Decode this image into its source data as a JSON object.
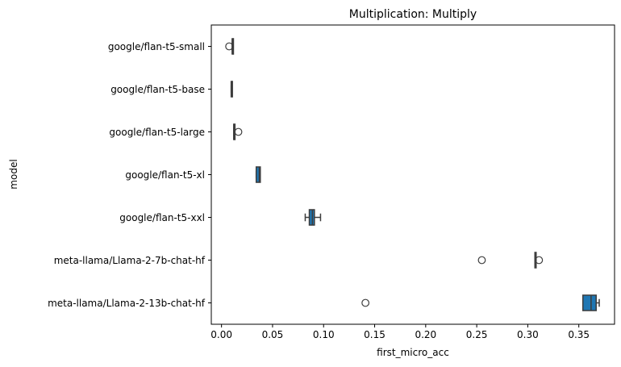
{
  "chart_data": {
    "type": "boxplot",
    "orientation": "horizontal",
    "title": "Multiplication: Multiply",
    "xlabel": "first_micro_acc",
    "ylabel": "model",
    "xlim": [
      -0.01,
      0.385
    ],
    "xticks": [
      0.0,
      0.05,
      0.1,
      0.15,
      0.2,
      0.25,
      0.3,
      0.35
    ],
    "xtick_labels": [
      "0.00",
      "0.05",
      "0.10",
      "0.15",
      "0.20",
      "0.25",
      "0.30",
      "0.35"
    ],
    "grid": false,
    "box_color": "#1f77b4",
    "line_color": "#3d3d3d",
    "categories": [
      "google/flan-t5-small",
      "google/flan-t5-base",
      "google/flan-t5-large",
      "google/flan-t5-xl",
      "google/flan-t5-xxl",
      "meta-llama/Llama-2-7b-chat-hf",
      "meta-llama/Llama-2-13b-chat-hf"
    ],
    "boxes": [
      {
        "whislo": 0.0105,
        "q1": 0.0105,
        "med": 0.0105,
        "q3": 0.0108,
        "whishi": 0.0108,
        "fliers": [
          0.0075
        ]
      },
      {
        "whislo": 0.0095,
        "q1": 0.0095,
        "med": 0.0095,
        "q3": 0.0097,
        "whishi": 0.0097,
        "fliers": []
      },
      {
        "whislo": 0.012,
        "q1": 0.012,
        "med": 0.012,
        "q3": 0.0125,
        "whishi": 0.0125,
        "fliers": [
          0.0165
        ]
      },
      {
        "whislo": 0.034,
        "q1": 0.034,
        "med": 0.037,
        "q3": 0.038,
        "whishi": 0.038,
        "fliers": []
      },
      {
        "whislo": 0.082,
        "q1": 0.086,
        "med": 0.089,
        "q3": 0.091,
        "whishi": 0.097,
        "fliers": []
      },
      {
        "whislo": 0.307,
        "q1": 0.307,
        "med": 0.307,
        "q3": 0.308,
        "whishi": 0.308,
        "fliers": [
          0.255,
          0.311
        ]
      },
      {
        "whislo": 0.354,
        "q1": 0.354,
        "med": 0.362,
        "q3": 0.367,
        "whishi": 0.37,
        "fliers": [
          0.141
        ]
      }
    ]
  }
}
